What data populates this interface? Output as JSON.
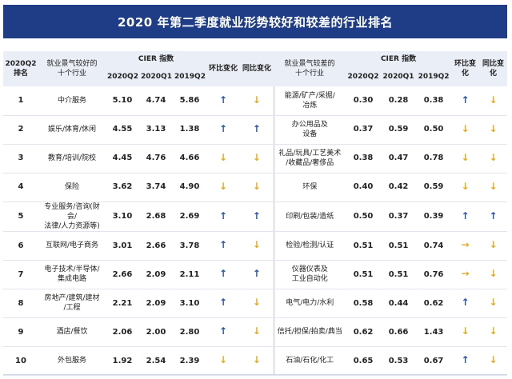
{
  "title": "2020 年第二季度就业形势较好和较差的行业排名",
  "header": {
    "rank": "2020Q2\n排名",
    "good_industry": "就业景气较好的\n十个行业",
    "cier_index": "CIER 指数",
    "q2_2020": "2020Q2",
    "q1_2020": "2020Q1",
    "q2_2019": "2019Q2",
    "qoq": "环比变化",
    "yoy": "同比变化",
    "bad_industry": "就业景气较差的\n十个行业",
    "cier_index_2": "CIER 指数",
    "q2_2020_b": "2020Q2",
    "q1_2020_b": "2020Q1",
    "q2_2019_b": "2019Q2",
    "qoq_b": "环比变化",
    "yoy_b": "同比变化"
  },
  "arrows": {
    "up": "↑",
    "down": "↓",
    "right": "→"
  },
  "colors": {
    "title_bg": "#1e3d86",
    "arrow_up": "#2a52a8",
    "arrow_down": "#e6a91c"
  },
  "rows": [
    {
      "rank": "1",
      "good": "中介服务",
      "g_q2": "5.10",
      "g_q1": "4.74",
      "g_19": "5.86",
      "g_qoq": "up",
      "g_yoy": "down",
      "bad": "能源/矿产/采掘/\n冶炼",
      "b_q2": "0.30",
      "b_q1": "0.28",
      "b_19": "0.38",
      "b_qoq": "up",
      "b_yoy": "down"
    },
    {
      "rank": "2",
      "good": "娱乐/体育/休闲",
      "g_q2": "4.55",
      "g_q1": "3.13",
      "g_19": "1.38",
      "g_qoq": "up",
      "g_yoy": "up",
      "bad": "办公用品及\n设备",
      "b_q2": "0.37",
      "b_q1": "0.59",
      "b_19": "0.50",
      "b_qoq": "down",
      "b_yoy": "down"
    },
    {
      "rank": "3",
      "good": "教育/培训/院校",
      "g_q2": "4.45",
      "g_q1": "4.76",
      "g_19": "4.66",
      "g_qoq": "down",
      "g_yoy": "down",
      "bad": "礼品/玩具/工艺美术\n/收藏品/奢侈品",
      "b_q2": "0.38",
      "b_q1": "0.47",
      "b_19": "0.78",
      "b_qoq": "down",
      "b_yoy": "down"
    },
    {
      "rank": "4",
      "good": "保险",
      "g_q2": "3.62",
      "g_q1": "3.74",
      "g_19": "4.90",
      "g_qoq": "down",
      "g_yoy": "down",
      "bad": "环保",
      "b_q2": "0.40",
      "b_q1": "0.42",
      "b_19": "0.59",
      "b_qoq": "down",
      "b_yoy": "down"
    },
    {
      "rank": "5",
      "good": "专业服务/咨询(财会/\n法律/人力资源等)",
      "g_q2": "3.10",
      "g_q1": "2.68",
      "g_19": "2.69",
      "g_qoq": "up",
      "g_yoy": "up",
      "bad": "印刷/包装/造纸",
      "b_q2": "0.50",
      "b_q1": "0.37",
      "b_19": "0.39",
      "b_qoq": "up",
      "b_yoy": "up"
    },
    {
      "rank": "6",
      "good": "互联网/电子商务",
      "g_q2": "3.01",
      "g_q1": "2.66",
      "g_19": "3.78",
      "g_qoq": "up",
      "g_yoy": "down",
      "bad": "检验/检测/认证",
      "b_q2": "0.51",
      "b_q1": "0.51",
      "b_19": "0.74",
      "b_qoq": "right",
      "b_yoy": "down"
    },
    {
      "rank": "7",
      "good": "电子技术/半导体/\n集成电路",
      "g_q2": "2.66",
      "g_q1": "2.09",
      "g_19": "2.11",
      "g_qoq": "up",
      "g_yoy": "up",
      "bad": "仪器仪表及\n工业自动化",
      "b_q2": "0.51",
      "b_q1": "0.51",
      "b_19": "0.76",
      "b_qoq": "right",
      "b_yoy": "down"
    },
    {
      "rank": "8",
      "good": "房地产/建筑/建材\n/工程",
      "g_q2": "2.21",
      "g_q1": "2.09",
      "g_19": "3.10",
      "g_qoq": "up",
      "g_yoy": "down",
      "bad": "电气/电力/水利",
      "b_q2": "0.58",
      "b_q1": "0.44",
      "b_19": "0.62",
      "b_qoq": "up",
      "b_yoy": "down"
    },
    {
      "rank": "9",
      "good": "酒店/餐饮",
      "g_q2": "2.06",
      "g_q1": "2.00",
      "g_19": "2.80",
      "g_qoq": "up",
      "g_yoy": "down",
      "bad": "信托/担保/拍卖/典当",
      "b_q2": "0.62",
      "b_q1": "0.66",
      "b_19": "1.43",
      "b_qoq": "down",
      "b_yoy": "down"
    },
    {
      "rank": "10",
      "good": "外包服务",
      "g_q2": "1.92",
      "g_q1": "2.54",
      "g_19": "2.39",
      "g_qoq": "down",
      "g_yoy": "down",
      "bad": "石油/石化/化工",
      "b_q2": "0.65",
      "b_q1": "0.53",
      "b_19": "0.67",
      "b_qoq": "up",
      "b_yoy": "down"
    }
  ]
}
